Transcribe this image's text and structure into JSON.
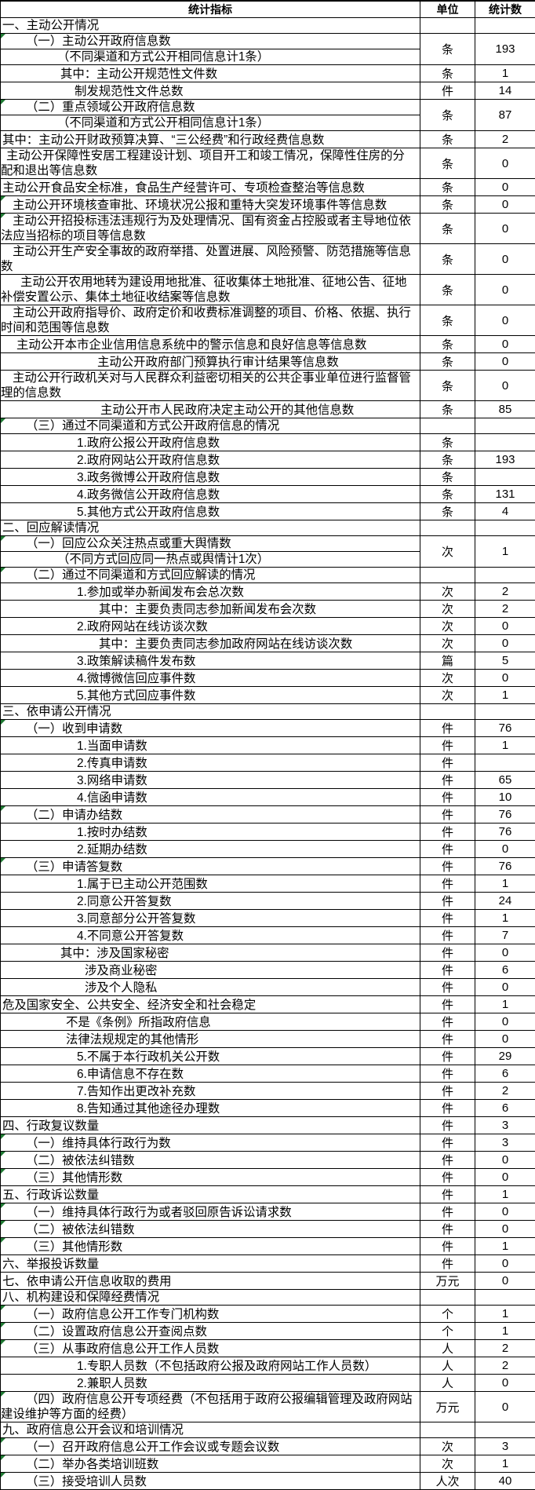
{
  "colors": {
    "border": "#000000",
    "background": "#ffffff",
    "flag_green": "#1f7a33"
  },
  "header": {
    "indicator": "统计指标",
    "unit": "单位",
    "count": "统计数"
  },
  "rows": [
    {
      "text": "一、主动公开情况",
      "indent": 2,
      "unit": "",
      "value": ""
    },
    {
      "text": [
        "（一）主动公开政府信息数",
        "（不同渠道和方式公开相同信息计1条）"
      ],
      "indent": [
        32,
        72
      ],
      "unit": "条",
      "value": "193",
      "flag": true
    },
    {
      "text": "其中：主动公开规范性文件数",
      "indent": 76,
      "unit": "条",
      "value": "1"
    },
    {
      "text": "制发规范性文件总数",
      "indent": 94,
      "unit": "件",
      "value": "14"
    },
    {
      "text": [
        "（二）重点领域公开政府信息数",
        "（不同渠道和方式公开相同信息计1条）"
      ],
      "indent": [
        32,
        72
      ],
      "unit": "条",
      "value": "87",
      "flag": true
    },
    {
      "text": "其中：主动公开财政预算决算、“三公经费”和行政经费信息数",
      "indent": 2,
      "unit": "条",
      "value": "2"
    },
    {
      "text": "主动公开保障性安居工程建设计划、项目开工和竣工情况，保障性住房的分配和退出等信息数",
      "indent": 7,
      "unit": "条",
      "value": "0",
      "wrap": 2
    },
    {
      "text": "主动公开食品安全标准，食品生产经营许可、专项检查整治等信息数",
      "indent": 2,
      "unit": "条",
      "value": "0"
    },
    {
      "text": "主动公开环境核查审批、环境状况公报和重特大突发环境事件等信息数",
      "indent": 15,
      "unit": "条",
      "value": "0",
      "flag": true
    },
    {
      "text": "主动公开招投标违法违规行为及处理情况、国有资金占控股或者主导地位依法应当招标的项目等信息数",
      "indent": 15,
      "unit": "条",
      "value": "0",
      "wrap": 2,
      "flag": true
    },
    {
      "text": "主动公开生产安全事故的政府举措、处置进展、风险预警、防范措施等信息数",
      "indent": 15,
      "unit": "条",
      "value": "0",
      "wrap": 2
    },
    {
      "text": "主动公开农用地转为建设用地批准、征收集体土地批准、征地公告、征地补偿安置公示、集体土地征收结案等信息数",
      "indent": 25,
      "unit": "条",
      "value": "0",
      "wrap": 2
    },
    {
      "text": "主动公开政府指导价、政府定价和收费标准调整的项目、价格、依据、执行时间和范围等信息数",
      "indent": 15,
      "unit": "条",
      "value": "0",
      "wrap": 2
    },
    {
      "text": "主动公开本市企业信用信息系统中的警示信息和良好信息等信息数",
      "indent": 20,
      "unit": "条",
      "value": "0"
    },
    {
      "text": "主动公开政府部门预算执行审计结果等信息数",
      "indent": 123,
      "unit": "条",
      "value": "0"
    },
    {
      "text": "主动公开行政机关对与人民群众利益密切相关的公共企事业单位进行监督管理的信息数",
      "indent": 15,
      "unit": "条",
      "value": "0",
      "wrap": 2
    },
    {
      "text": "主动公开市人民政府决定主动公开的其他信息数",
      "indent": 127,
      "unit": "条",
      "value": "85"
    },
    {
      "text": "（三）通过不同渠道和方式公开政府信息的情况",
      "indent": 32,
      "unit": "",
      "value": "",
      "flag": true
    },
    {
      "text": "1.政府公报公开政府信息数",
      "indent": 97,
      "unit": "条",
      "value": ""
    },
    {
      "text": "2.政府网站公开政府信息数",
      "indent": 97,
      "unit": "条",
      "value": "193"
    },
    {
      "text": "3.政务微博公开政府信息数",
      "indent": 97,
      "unit": "条",
      "value": ""
    },
    {
      "text": "4.政务微信公开政府信息数",
      "indent": 97,
      "unit": "条",
      "value": "131"
    },
    {
      "text": "5.其他方式公开政府信息数",
      "indent": 97,
      "unit": "条",
      "value": "4"
    },
    {
      "text": "二、回应解读情况",
      "indent": 2,
      "unit": "",
      "value": ""
    },
    {
      "text": [
        "（一）回应公众关注热点或重大舆情数",
        "（不同方式回应同一热点或舆情计1次）"
      ],
      "indent": [
        32,
        72
      ],
      "unit": "次",
      "value": "1",
      "flag": true
    },
    {
      "text": "（二）通过不同渠道和方式回应解读的情况",
      "indent": 32,
      "unit": "",
      "value": "",
      "flag": true
    },
    {
      "text": "1.参加或举办新闻发布会总次数",
      "indent": 97,
      "unit": "次",
      "value": "2"
    },
    {
      "text": "其中：主要负责同志参加新闻发布会次数",
      "indent": 125,
      "unit": "次",
      "value": "2"
    },
    {
      "text": "2.政府网站在线访谈次数",
      "indent": 97,
      "unit": "次",
      "value": "0"
    },
    {
      "text": "其中：主要负责同志参加政府网站在线访谈次数",
      "indent": 125,
      "unit": "次",
      "value": "0"
    },
    {
      "text": "3.政策解读稿件发布数",
      "indent": 97,
      "unit": "篇",
      "value": "5"
    },
    {
      "text": "4.微博微信回应事件数",
      "indent": 97,
      "unit": "次",
      "value": "0"
    },
    {
      "text": "5.其他方式回应事件数",
      "indent": 97,
      "unit": "次",
      "value": "1"
    },
    {
      "text": "三、依申请公开情况",
      "indent": 2,
      "unit": "",
      "value": ""
    },
    {
      "text": "（一）收到申请数",
      "indent": 32,
      "unit": "件",
      "value": "76",
      "flag": true
    },
    {
      "text": "1.当面申请数",
      "indent": 97,
      "unit": "件",
      "value": "1"
    },
    {
      "text": "2.传真申请数",
      "indent": 97,
      "unit": "件",
      "value": ""
    },
    {
      "text": "3.网络申请数",
      "indent": 97,
      "unit": "件",
      "value": "65"
    },
    {
      "text": "4.信函申请数",
      "indent": 97,
      "unit": "件",
      "value": "10"
    },
    {
      "text": "（二）申请办结数",
      "indent": 32,
      "unit": "件",
      "value": "76",
      "flag": true
    },
    {
      "text": "1.按时办结数",
      "indent": 97,
      "unit": "件",
      "value": "76"
    },
    {
      "text": "2.延期办结数",
      "indent": 97,
      "unit": "件",
      "value": "0"
    },
    {
      "text": "（三）申请答复数",
      "indent": 32,
      "unit": "件",
      "value": "76",
      "flag": true
    },
    {
      "text": "1.属于已主动公开范围数",
      "indent": 97,
      "unit": "件",
      "value": "1"
    },
    {
      "text": "2.同意公开答复数",
      "indent": 97,
      "unit": "件",
      "value": "24"
    },
    {
      "text": "3.同意部分公开答复数",
      "indent": 97,
      "unit": "件",
      "value": "1"
    },
    {
      "text": "4.不同意公开答复数",
      "indent": 97,
      "unit": "件",
      "value": "7"
    },
    {
      "text": "其中：涉及国家秘密",
      "indent": 76,
      "unit": "件",
      "value": "0"
    },
    {
      "text": "涉及商业秘密",
      "indent": 107,
      "unit": "件",
      "value": "6"
    },
    {
      "text": "涉及个人隐私",
      "indent": 107,
      "unit": "件",
      "value": "0"
    },
    {
      "text": "危及国家安全、公共安全、经济安全和社会稳定",
      "indent": 2,
      "unit": "件",
      "value": "1"
    },
    {
      "text": "不是《条例》所指政府信息",
      "indent": 83,
      "unit": "件",
      "value": "0"
    },
    {
      "text": "法律法规规定的其他情形",
      "indent": 83,
      "unit": "件",
      "value": "0"
    },
    {
      "text": "5.不属于本行政机关公开数",
      "indent": 97,
      "unit": "件",
      "value": "29"
    },
    {
      "text": "6.申请信息不存在数",
      "indent": 97,
      "unit": "件",
      "value": "6"
    },
    {
      "text": "7.告知作出更改补充数",
      "indent": 97,
      "unit": "件",
      "value": "2"
    },
    {
      "text": "8.告知通过其他途径办理数",
      "indent": 97,
      "unit": "件",
      "value": "6"
    },
    {
      "text": "四、行政复议数量",
      "indent": 2,
      "unit": "件",
      "value": "3"
    },
    {
      "text": "（一）维持具体行政行为数",
      "indent": 32,
      "unit": "件",
      "value": "3",
      "flag": true
    },
    {
      "text": "（二）被依法纠错数",
      "indent": 32,
      "unit": "件",
      "value": "0",
      "flag": true
    },
    {
      "text": "（三）其他情形数",
      "indent": 32,
      "unit": "件",
      "value": "0",
      "flag": true
    },
    {
      "text": "五、行政诉讼数量",
      "indent": 2,
      "unit": "件",
      "value": "1"
    },
    {
      "text": "（一）维持具体行政行为或者驳回原告诉讼请求数",
      "indent": 32,
      "unit": "件",
      "value": "0",
      "flag": true
    },
    {
      "text": "（二）被依法纠错数",
      "indent": 32,
      "unit": "件",
      "value": "0",
      "flag": true
    },
    {
      "text": "（三）其他情形数",
      "indent": 32,
      "unit": "件",
      "value": "1",
      "flag": true
    },
    {
      "text": "六、举报投诉数量",
      "indent": 2,
      "unit": "件",
      "value": "0"
    },
    {
      "text": "七、依申请公开信息收取的费用",
      "indent": 2,
      "unit": "万元",
      "value": "0"
    },
    {
      "text": "八、机构建设和保障经费情况",
      "indent": 2,
      "unit": "",
      "value": ""
    },
    {
      "text": "（一）政府信息公开工作专门机构数",
      "indent": 32,
      "unit": "个",
      "value": "1",
      "flag": true
    },
    {
      "text": "（二）设置政府信息公开查阅点数",
      "indent": 32,
      "unit": "个",
      "value": "1",
      "flag": true
    },
    {
      "text": "（三）从事政府信息公开工作人员数",
      "indent": 32,
      "unit": "人",
      "value": "2",
      "flag": true
    },
    {
      "text": "1.专职人员数（不包括政府公报及政府网站工作人员数）",
      "indent": 97,
      "unit": "人",
      "value": "2"
    },
    {
      "text": "2.兼职人员数",
      "indent": 97,
      "unit": "人",
      "value": "0"
    },
    {
      "text": "（四）政府信息公开专项经费（不包括用于政府公报编辑管理及政府网站建设维护等方面的经费）",
      "indent": 32,
      "unit": "万元",
      "value": "0",
      "wrap": 2,
      "flag": true
    },
    {
      "text": "九、政府信息公开会议和培训情况",
      "indent": 2,
      "unit": "",
      "value": ""
    },
    {
      "text": "（一）召开政府信息公开工作会议或专题会议数",
      "indent": 32,
      "unit": "次",
      "value": "3",
      "flag": true
    },
    {
      "text": "（二）举办各类培训班数",
      "indent": 32,
      "unit": "次",
      "value": "1",
      "flag": true
    },
    {
      "text": "（三）接受培训人员数",
      "indent": 32,
      "unit": "人次",
      "value": "40",
      "flag": true
    }
  ]
}
